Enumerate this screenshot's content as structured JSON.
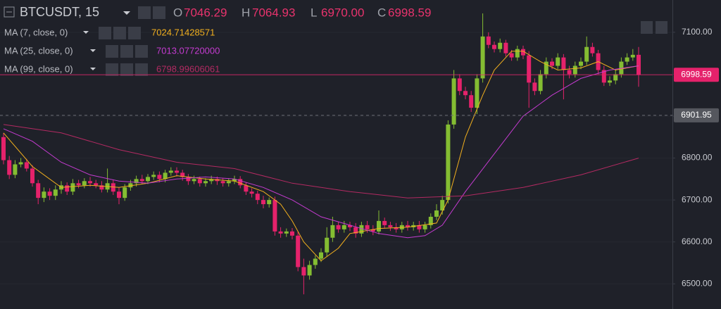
{
  "chart_data": {
    "type": "candlestick",
    "title": "BTCUSDT, 15",
    "ohlc_labels": [
      "O",
      "H",
      "L",
      "C"
    ],
    "ohlc_value_labels": [
      "7046.29",
      "7064.93",
      "6970.00",
      "6998.59"
    ],
    "up_color": "#84bd32",
    "down_color": "#e5226b",
    "open": [
      6850,
      6795,
      6760,
      6785,
      6790,
      6775,
      6740,
      6705,
      6720,
      6710,
      6725,
      6735,
      6720,
      6740,
      6735,
      6745,
      6740,
      6735,
      6725,
      6740,
      6720,
      6705,
      6730,
      6740,
      6750,
      6745,
      6755,
      6760,
      6750,
      6765,
      6770,
      6765,
      6755,
      6745,
      6750,
      6740,
      6745,
      6750,
      6745,
      6740,
      6745,
      6750,
      6735,
      6720,
      6715,
      6700,
      6690,
      6700,
      6625,
      6620,
      6625,
      6615,
      6540,
      6520,
      6545,
      6560,
      6575,
      6610,
      6640,
      6630,
      6640,
      6635,
      6620,
      6640,
      6630,
      6625,
      6650,
      6640,
      6635,
      6630,
      6640,
      6635,
      6640,
      6630,
      6640,
      6660,
      6675,
      6700,
      6880,
      6990,
      6960,
      6950,
      6920,
      6990,
      7090,
      7070,
      7060,
      7075,
      7050,
      7040,
      7060,
      7045,
      6980,
      6960,
      7000,
      7030,
      7020,
      7040,
      7010,
      7000,
      7020,
      7030,
      7065,
      7050,
      7010,
      6980,
      6985,
      7000,
      7030,
      7040,
      7046.29
    ],
    "high": [
      6860,
      6805,
      6795,
      6800,
      6798,
      6783,
      6748,
      6730,
      6728,
      6735,
      6745,
      6742,
      6750,
      6748,
      6752,
      6755,
      6748,
      6745,
      6775,
      6748,
      6730,
      6738,
      6748,
      6758,
      6760,
      6762,
      6768,
      6768,
      6772,
      6778,
      6778,
      6772,
      6762,
      6758,
      6756,
      6752,
      6758,
      6756,
      6752,
      6752,
      6758,
      6757,
      6742,
      6728,
      6722,
      6710,
      6706,
      6708,
      6635,
      6632,
      6633,
      6625,
      6560,
      6555,
      6568,
      6585,
      6635,
      6660,
      6648,
      6650,
      6648,
      6645,
      6648,
      6650,
      6640,
      6675,
      6658,
      6648,
      6645,
      6648,
      6650,
      6648,
      6650,
      6648,
      6668,
      6690,
      6710,
      6890,
      7010,
      7000,
      6970,
      6960,
      7000,
      7145,
      7100,
      7078,
      7085,
      7082,
      7058,
      7068,
      7068,
      7055,
      6990,
      7010,
      7040,
      7038,
      7050,
      7048,
      7020,
      7030,
      7040,
      7090,
      7075,
      7058,
      7020,
      6995,
      7010,
      7040,
      7050,
      7060,
      7064.93
    ],
    "low": [
      6785,
      6750,
      6752,
      6778,
      6768,
      6732,
      6690,
      6695,
      6700,
      6700,
      6715,
      6712,
      6712,
      6728,
      6728,
      6732,
      6728,
      6718,
      6718,
      6712,
      6690,
      6698,
      6722,
      6732,
      6738,
      6738,
      6748,
      6742,
      6742,
      6758,
      6756,
      6746,
      6736,
      6738,
      6732,
      6732,
      6738,
      6736,
      6732,
      6732,
      6738,
      6728,
      6712,
      6706,
      6690,
      6680,
      6682,
      6615,
      6610,
      6612,
      6606,
      6530,
      6475,
      6510,
      6536,
      6552,
      6565,
      6600,
      6622,
      6622,
      6626,
      6610,
      6612,
      6622,
      6616,
      6618,
      6632,
      6626,
      6622,
      6622,
      6627,
      6627,
      6622,
      6622,
      6632,
      6652,
      6665,
      6692,
      6870,
      6950,
      6940,
      6910,
      6905,
      6980,
      7062,
      7052,
      7052,
      7042,
      7032,
      7032,
      7036,
      6920,
      6950,
      6952,
      6990,
      7012,
      7012,
      6940,
      6990,
      6992,
      7012,
      7022,
      7042,
      7000,
      6972,
      6972,
      6976,
      6992,
      7022,
      7032,
      6970
    ],
    "close": [
      6795,
      6760,
      6785,
      6790,
      6775,
      6740,
      6705,
      6720,
      6710,
      6725,
      6735,
      6720,
      6740,
      6735,
      6745,
      6740,
      6735,
      6725,
      6740,
      6720,
      6705,
      6730,
      6740,
      6750,
      6745,
      6755,
      6760,
      6750,
      6765,
      6770,
      6765,
      6755,
      6745,
      6750,
      6740,
      6745,
      6750,
      6745,
      6740,
      6745,
      6750,
      6735,
      6720,
      6715,
      6700,
      6690,
      6700,
      6625,
      6620,
      6625,
      6615,
      6540,
      6520,
      6545,
      6560,
      6575,
      6610,
      6640,
      6630,
      6640,
      6635,
      6620,
      6640,
      6630,
      6625,
      6650,
      6640,
      6635,
      6630,
      6640,
      6635,
      6640,
      6630,
      6640,
      6660,
      6675,
      6700,
      6880,
      6990,
      6960,
      6950,
      6920,
      6990,
      7090,
      7070,
      7060,
      7075,
      7050,
      7040,
      7060,
      7045,
      6980,
      6960,
      7000,
      7030,
      7020,
      7040,
      7010,
      7000,
      7020,
      7030,
      7065,
      7050,
      7010,
      6980,
      6985,
      7000,
      7030,
      7040,
      7046.29,
      6998.59
    ],
    "series": [
      {
        "name": "MA (7, close, 0)",
        "color": "#f2b01e",
        "last_value_label": "7024.71428571",
        "x": [
          0,
          5,
          10,
          15,
          20,
          25,
          30,
          35,
          40,
          45,
          48,
          50,
          52,
          55,
          58,
          60,
          65,
          70,
          75,
          77,
          80,
          83,
          85,
          88,
          90,
          93,
          96,
          100,
          103,
          106,
          110
        ],
        "values": [
          6860,
          6780,
          6730,
          6735,
          6730,
          6740,
          6758,
          6750,
          6745,
          6720,
          6690,
          6650,
          6600,
          6555,
          6585,
          6620,
          6632,
          6635,
          6645,
          6700,
          6850,
          6950,
          7010,
          7055,
          7055,
          7030,
          7010,
          7015,
          7030,
          7010,
          7020
        ]
      },
      {
        "name": "MA (25, close, 0)",
        "color": "#c43bd0",
        "last_value_label": "7013.07720000",
        "x": [
          0,
          5,
          10,
          15,
          20,
          25,
          30,
          35,
          40,
          45,
          50,
          55,
          60,
          65,
          70,
          73,
          76,
          80,
          85,
          90,
          95,
          100,
          105,
          110
        ],
        "values": [
          6870,
          6840,
          6790,
          6760,
          6745,
          6740,
          6750,
          6755,
          6750,
          6730,
          6700,
          6660,
          6640,
          6620,
          6610,
          6615,
          6640,
          6720,
          6810,
          6900,
          6950,
          6990,
          7010,
          7020
        ]
      },
      {
        "name": "MA (99, close, 0)",
        "color": "#b32a62",
        "last_value_label": "6798.99606061",
        "x": [
          0,
          10,
          20,
          30,
          40,
          50,
          60,
          70,
          80,
          90,
          100,
          110
        ],
        "values": [
          6880,
          6860,
          6820,
          6790,
          6775,
          6740,
          6720,
          6705,
          6710,
          6730,
          6760,
          6800
        ]
      }
    ],
    "ylim": [
      6440,
      7177
    ],
    "yticks": [
      {
        "value": 6500,
        "label": "6500.00"
      },
      {
        "value": 6600,
        "label": "6600.00"
      },
      {
        "value": 6700,
        "label": "6700.00"
      },
      {
        "value": 6800,
        "label": "6800.00"
      },
      {
        "value": 6900,
        "label": "6900.00"
      },
      {
        "value": 7000,
        "label": "7000.00"
      },
      {
        "value": 7100,
        "label": "7100.00"
      }
    ],
    "price_line": {
      "value": 6998.59,
      "color": "#e5226b"
    },
    "crosshair": {
      "value": 6901.95,
      "color": "#6a6d75"
    }
  }
}
